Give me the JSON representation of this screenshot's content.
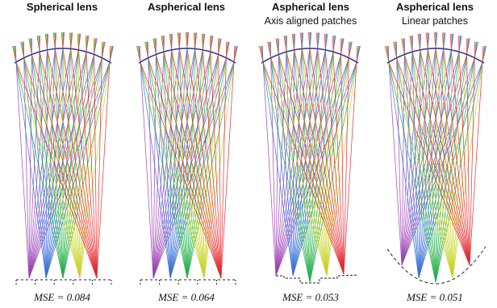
{
  "panels": [
    {
      "title": "Spherical lens",
      "subtitle": "",
      "mse": "MSE = 0.084",
      "sensor": "flat"
    },
    {
      "title": "Aspherical lens",
      "subtitle": "",
      "mse": "MSE = 0.064",
      "sensor": "flat"
    },
    {
      "title": "Aspherical lens",
      "subtitle": "Axis aligned patches",
      "mse": "MSE = 0.053",
      "sensor": "stepped"
    },
    {
      "title": "Aspherical lens",
      "subtitle": "Linear patches",
      "mse": "MSE = 0.051",
      "sensor": "curved"
    }
  ],
  "colors": {
    "rays": [
      "#9a3fb5",
      "#3a6fd8",
      "#22b04a",
      "#c8d322",
      "#e3262a"
    ],
    "lens": "#3a3d9c",
    "sensor": "#222222"
  }
}
